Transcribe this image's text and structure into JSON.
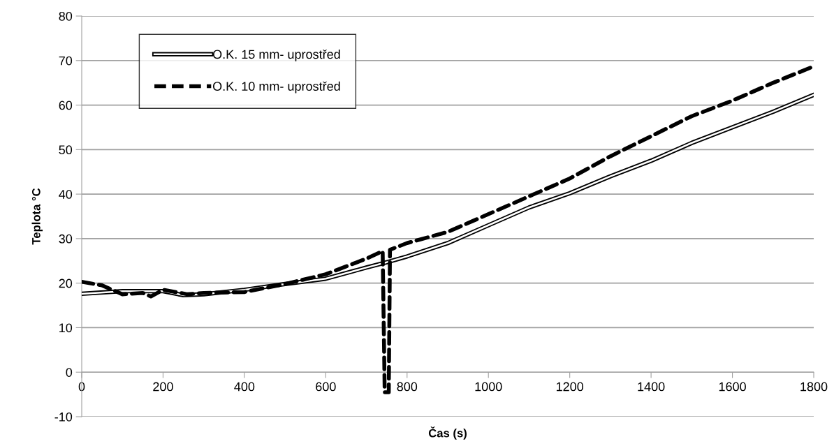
{
  "chart_data": {
    "type": "line",
    "xlabel": "Čas (s)",
    "ylabel": "Teplota °C",
    "xlim": [
      0,
      1800
    ],
    "xticks": [
      0,
      200,
      400,
      600,
      800,
      1000,
      1200,
      1400,
      1600,
      1800
    ],
    "ylim": [
      -10,
      80
    ],
    "yticks": [
      -10,
      0,
      10,
      20,
      30,
      40,
      50,
      60,
      70,
      80
    ],
    "grid": "y",
    "legend": "top left",
    "marker": "none",
    "series": [
      {
        "name": "O.K. 15 mm- uprostřed",
        "color": "#000000",
        "line_style": "solid",
        "x": [
          0,
          100,
          200,
          250,
          300,
          400,
          500,
          600,
          700,
          750,
          800,
          900,
          1000,
          1100,
          1200,
          1300,
          1400,
          1500,
          1600,
          1700,
          1800
        ],
        "values": [
          17.6,
          18.2,
          18.2,
          17.3,
          17.5,
          18.5,
          19.8,
          21,
          23.5,
          24.7,
          26,
          29,
          33,
          37,
          40.2,
          44,
          47.5,
          51.5,
          55,
          58.5,
          62.3
        ]
      },
      {
        "name": "O.K. 10 mm- uprostřed",
        "color": "#000000",
        "line_style": "dashed",
        "x": [
          0,
          50,
          100,
          150,
          170,
          200,
          260,
          300,
          400,
          500,
          600,
          700,
          740,
          745,
          755,
          758,
          800,
          900,
          1000,
          1100,
          1200,
          1300,
          1400,
          1500,
          1600,
          1700,
          1800
        ],
        "values": [
          20.3,
          19.5,
          17.5,
          17.8,
          17,
          18.5,
          17.5,
          17.8,
          18,
          19.8,
          22,
          25.5,
          27.2,
          -4.5,
          -4.5,
          27.5,
          29,
          31.5,
          35.5,
          39.5,
          43.5,
          48.5,
          53,
          57.5,
          61,
          65,
          68.7
        ]
      }
    ]
  }
}
